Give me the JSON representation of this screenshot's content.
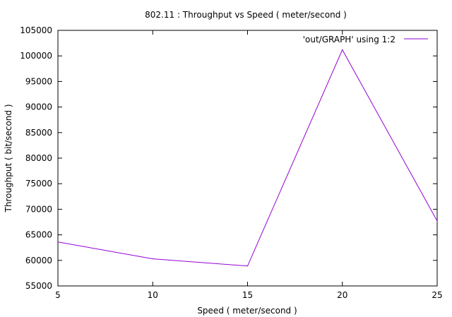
{
  "chart_data": {
    "type": "line",
    "title": "802.11 : Throughput vs Speed ( meter/second )",
    "xlabel": "Speed ( meter/second )",
    "ylabel": "Throughput ( bit/second )",
    "xlim": [
      5,
      25
    ],
    "ylim": [
      55000,
      105000
    ],
    "x_ticks": [
      5,
      10,
      15,
      20,
      25
    ],
    "y_ticks": [
      55000,
      60000,
      65000,
      70000,
      75000,
      80000,
      85000,
      90000,
      95000,
      100000,
      105000
    ],
    "grid": false,
    "legend_position": "top-right",
    "series": [
      {
        "name": "'out/GRAPH' using 1:2",
        "color": "#9400d3",
        "x": [
          5,
          10,
          15,
          20,
          25
        ],
        "y": [
          63600,
          60300,
          58900,
          101200,
          67700
        ]
      }
    ]
  }
}
